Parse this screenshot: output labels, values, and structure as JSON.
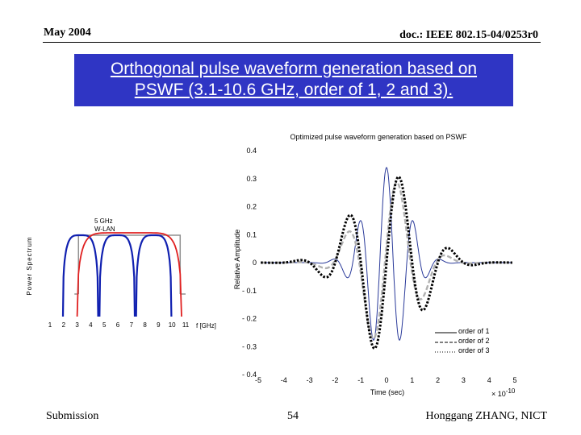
{
  "header": {
    "date": "May 2004",
    "doc_id": "doc.: IEEE 802.15-04/0253r0"
  },
  "slide_title": {
    "line1": "Orthogonal pulse waveform generation based on",
    "line2": "PSWF (3.1-10.6 GHz, order of 1, 2 and 3)."
  },
  "footer": {
    "left": "Submission",
    "page": "54",
    "author": "Honggang ZHANG, NICT"
  },
  "colors": {
    "title_bg": "#2f35c4",
    "spectrum_blue": "#1020b0",
    "spectrum_red": "#e02020",
    "mask_gray": "#909090",
    "order1": "#2a3a9a",
    "order2": "#b0b0b0",
    "order3": "#000000"
  },
  "chart_data": [
    {
      "type": "line",
      "title": "",
      "xlabel": "f [GHz]",
      "ylabel": "Power Spectrum",
      "x_ticks": [
        "1",
        "2",
        "3",
        "4",
        "5",
        "6",
        "7",
        "8",
        "9",
        "10",
        "11"
      ],
      "xlim": [
        1,
        11
      ],
      "annotation": "5 GHz W-LAN",
      "series": [
        {
          "kind": "spectral-lobes",
          "centers_ghz": [
            3.25,
            5.95,
            8.65
          ],
          "width_ghz": 2.6
        },
        {
          "kind": "envelope",
          "range_ghz": [
            3.1,
            10.6
          ]
        },
        {
          "kind": "mask",
          "range_ghz": [
            3.1,
            10.6
          ]
        }
      ]
    },
    {
      "type": "line",
      "title": "Optimized pulse waveform generation based on PSWF",
      "xlabel": "Time (sec)",
      "ylabel": "Relative Amplitude",
      "x_ticks": [
        "-5",
        "-4",
        "-3",
        "-2",
        "-1",
        "0",
        "1",
        "2",
        "3",
        "4",
        "5"
      ],
      "y_ticks": [
        "0.4",
        "0.3",
        "0.2",
        "0.1",
        "0",
        "- 0.1",
        "- 0.2",
        "- 0.3",
        "- 0.4"
      ],
      "x_multiplier": "× 10",
      "x_exponent": "-10",
      "xlim": [
        -5,
        5
      ],
      "ylim": [
        -0.4,
        0.4
      ],
      "legend_position": "bottom-right",
      "series": [
        {
          "name": "order of 1",
          "style": "solid",
          "peak": 0.34,
          "freq_scale": 1.0,
          "parity": "even"
        },
        {
          "name": "order of 2",
          "style": "dashed",
          "peak": 0.31,
          "freq_scale": 1.0,
          "parity": "odd"
        },
        {
          "name": "order of 3",
          "style": "dotted",
          "peak": 0.33,
          "freq_scale": 1.0,
          "parity": "even-shifted"
        }
      ]
    }
  ]
}
